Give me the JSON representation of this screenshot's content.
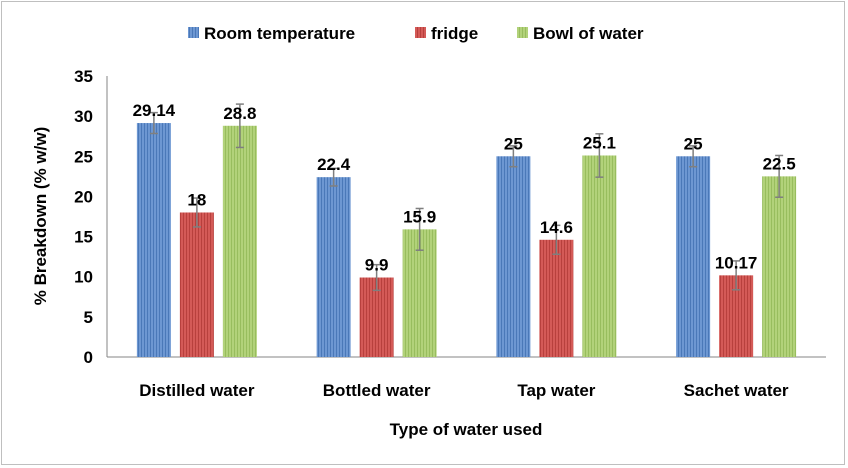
{
  "chart_data": {
    "type": "bar",
    "title": "",
    "xlabel": "Type of water used",
    "ylabel": "% Breakdown (% w/w)",
    "ylim": [
      0,
      35
    ],
    "yticks": [
      0,
      5,
      10,
      15,
      20,
      25,
      30,
      35
    ],
    "grid": false,
    "legend_position": "top",
    "categories": [
      "Distilled water",
      "Bottled water",
      "Tap water",
      "Sachet water"
    ],
    "series": [
      {
        "name": "Room temperature",
        "color": "#4f81bd",
        "values": [
          29.14,
          22.4,
          25,
          25
        ],
        "labels": [
          "29.14",
          "22.4",
          "25",
          "25"
        ],
        "errors": [
          1.3,
          1.1,
          1.3,
          1.3
        ]
      },
      {
        "name": "fridge",
        "color": "#c0504d",
        "values": [
          18,
          9.9,
          14.6,
          10.17
        ],
        "labels": [
          "18",
          "9.9",
          "14.6",
          "10.17"
        ],
        "errors": [
          1.8,
          1.6,
          1.8,
          1.8
        ]
      },
      {
        "name": "Bowl of water",
        "color": "#9bbb59",
        "values": [
          28.8,
          15.9,
          25.1,
          22.5
        ],
        "labels": [
          "28.8",
          "15.9",
          "25.1",
          "22.5"
        ],
        "errors": [
          2.7,
          2.6,
          2.7,
          2.6
        ]
      }
    ]
  }
}
